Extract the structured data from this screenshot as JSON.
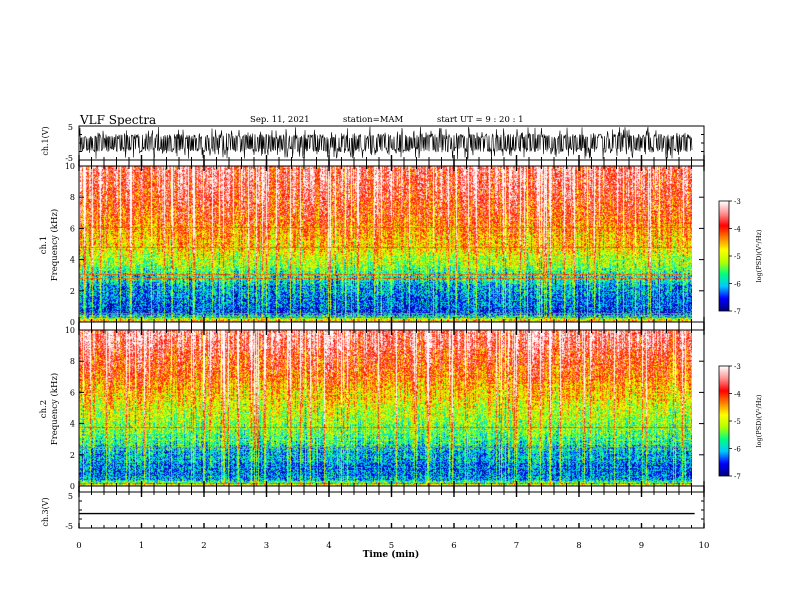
{
  "header": {
    "title": "VLF Spectra",
    "date": "Sep. 11, 2021",
    "station": "station=MAM",
    "start": "start UT =  9 : 20 : 1"
  },
  "colors": {
    "trace": "#000000",
    "colormap": [
      "#00007f",
      "#0000ff",
      "#00c8ff",
      "#00ff80",
      "#b4ff00",
      "#ffff00",
      "#ff8000",
      "#ff0000",
      "#ff9090",
      "#ffffff"
    ]
  },
  "chart_data": [
    {
      "type": "line",
      "panel": "ch1-waveform",
      "ylabel": "ch.1(V)",
      "ylim": [
        -5,
        5
      ],
      "yticks": [
        "5",
        "-5"
      ],
      "x_range": [
        0,
        9.85
      ],
      "amplitude_envelope": [
        -4.8,
        4.8
      ]
    },
    {
      "type": "heatmap",
      "panel": "ch1-spectrogram",
      "ylabel": "ch.1\nFrequency (kHz)",
      "ylim": [
        0,
        10
      ],
      "yticks": [
        "0",
        "2",
        "4",
        "6",
        "8",
        "10"
      ],
      "x_range": [
        0,
        9.85
      ],
      "colorbar": {
        "label": "log(PSD)(V²/Hz)",
        "range": [
          -7,
          -3
        ],
        "ticks": [
          "-3",
          "-4",
          "-5",
          "-6",
          "-7"
        ]
      },
      "level_profile": {
        "freq_khz": [
          0,
          0.5,
          1,
          2,
          3,
          4,
          5,
          6,
          7,
          8,
          9,
          10
        ],
        "log_psd": [
          -4.2,
          -6.3,
          -6.4,
          -6.2,
          -5.7,
          -5.1,
          -4.6,
          -4.3,
          -4.0,
          -3.8,
          -3.6,
          -3.5
        ]
      },
      "horizontal_lines_khz": [
        0.3,
        0.6,
        2.8,
        3.1,
        4.8,
        6.1
      ]
    },
    {
      "type": "heatmap",
      "panel": "ch2-spectrogram",
      "ylabel": "ch.2\nFrequency (kHz)",
      "ylim": [
        0,
        10
      ],
      "yticks": [
        "0",
        "2",
        "4",
        "6",
        "8",
        "10"
      ],
      "x_range": [
        0,
        9.85
      ],
      "colorbar": {
        "label": "log(PSD)(V²/Hz)",
        "range": [
          -7,
          -3
        ],
        "ticks": [
          "-3",
          "-4",
          "-5",
          "-6",
          "-7"
        ]
      },
      "level_profile": {
        "freq_khz": [
          0,
          0.5,
          1,
          2,
          3,
          4,
          5,
          6,
          7,
          8,
          9,
          10
        ],
        "log_psd": [
          -4.8,
          -6.2,
          -6.3,
          -6.1,
          -5.6,
          -5.3,
          -5.0,
          -4.6,
          -4.2,
          -3.9,
          -3.6,
          -3.4
        ]
      },
      "horizontal_lines_khz": [
        0.2,
        2.5,
        3.8
      ]
    },
    {
      "type": "line",
      "panel": "ch3-waveform",
      "ylabel": "ch.3(V)",
      "ylim": [
        -5,
        5
      ],
      "yticks": [
        "5",
        "-5"
      ],
      "x": [
        0,
        9.85
      ],
      "y": [
        -1,
        -1
      ]
    }
  ],
  "xaxis": {
    "label": "Time (min)",
    "range": [
      0,
      10
    ],
    "ticks": [
      "0",
      "1",
      "2",
      "3",
      "4",
      "5",
      "6",
      "7",
      "8",
      "9",
      "10"
    ]
  }
}
